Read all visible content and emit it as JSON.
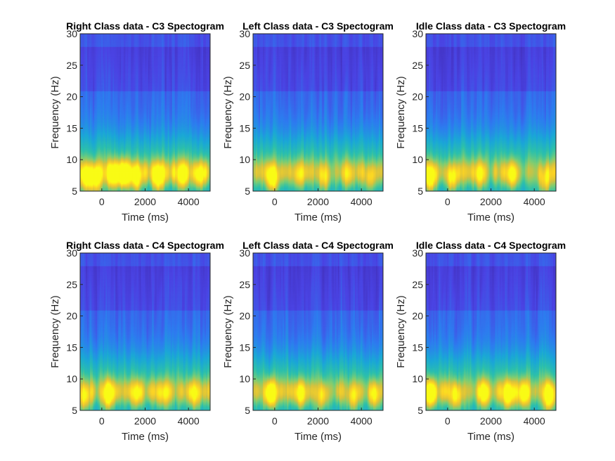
{
  "chart_data": [
    {
      "type": "heatmap",
      "title": "Right Class data - C3 Spectogram",
      "xlabel": "Time (ms)",
      "ylabel": "Frequency (Hz)",
      "xlim": [
        -1000,
        5000
      ],
      "ylim": [
        5,
        30
      ],
      "xticks": [
        "0",
        "2000",
        "4000"
      ],
      "yticks": [
        "5",
        "10",
        "15",
        "20",
        "25",
        "30"
      ],
      "colormap": [
        "#3e26a8",
        "#4a43e3",
        "#2d7bef",
        "#1aa7d6",
        "#2cc0aa",
        "#7ccd73",
        "#d6c23d",
        "#fbd225",
        "#f9fb15"
      ],
      "intensity": 0.95,
      "hot_spots": [
        {
          "t": -700,
          "f": 7,
          "v": 0.85
        },
        {
          "t": -300,
          "f": 6.5,
          "v": 0.75
        },
        {
          "t": 500,
          "f": 7.5,
          "v": 0.8
        },
        {
          "t": 1000,
          "f": 7.5,
          "v": 0.95
        },
        {
          "t": 1600,
          "f": 7,
          "v": 0.85
        },
        {
          "t": 2600,
          "f": 7,
          "v": 0.9
        },
        {
          "t": 3700,
          "f": 7.5,
          "v": 0.85
        },
        {
          "t": 4500,
          "f": 7.5,
          "v": 0.85
        }
      ]
    },
    {
      "type": "heatmap",
      "title": "Left Class data - C3 Spectogram",
      "xlabel": "Time (ms)",
      "ylabel": "Frequency (Hz)",
      "xlim": [
        -1000,
        5000
      ],
      "ylim": [
        5,
        30
      ],
      "xticks": [
        "0",
        "2000",
        "4000"
      ],
      "yticks": [
        "5",
        "10",
        "15",
        "20",
        "25",
        "30"
      ],
      "colormap": [
        "#3e26a8",
        "#4a43e3",
        "#2d7bef",
        "#1aa7d6",
        "#2cc0aa",
        "#7ccd73",
        "#d6c23d",
        "#fbd225",
        "#f9fb15"
      ],
      "intensity": 0.7,
      "hot_spots": [
        {
          "t": -100,
          "f": 7,
          "v": 1.0
        },
        {
          "t": 1100,
          "f": 7.5,
          "v": 0.55
        },
        {
          "t": 2300,
          "f": 7,
          "v": 0.55
        },
        {
          "t": 3400,
          "f": 7.5,
          "v": 0.5
        },
        {
          "t": 4400,
          "f": 7,
          "v": 0.55
        }
      ]
    },
    {
      "type": "heatmap",
      "title": "Idle Class data - C3 Spectogram",
      "xlabel": "Time (ms)",
      "ylabel": "Frequency (Hz)",
      "xlim": [
        -1000,
        5000
      ],
      "ylim": [
        5,
        30
      ],
      "xticks": [
        "0",
        "2000",
        "4000"
      ],
      "yticks": [
        "5",
        "10",
        "15",
        "20",
        "25",
        "30"
      ],
      "colormap": [
        "#3e26a8",
        "#4a43e3",
        "#2d7bef",
        "#1aa7d6",
        "#2cc0aa",
        "#7ccd73",
        "#d6c23d",
        "#fbd225",
        "#f9fb15"
      ],
      "intensity": 0.75,
      "hot_spots": [
        {
          "t": -800,
          "f": 7,
          "v": 1.0
        },
        {
          "t": 200,
          "f": 7,
          "v": 0.8
        },
        {
          "t": 1500,
          "f": 7.5,
          "v": 0.55
        },
        {
          "t": 3000,
          "f": 7.5,
          "v": 0.75
        },
        {
          "t": 4500,
          "f": 6.5,
          "v": 0.65
        }
      ]
    },
    {
      "type": "heatmap",
      "title": "Right Class data - C4 Spectogram",
      "xlabel": "Time (ms)",
      "ylabel": "Frequency (Hz)",
      "xlim": [
        -1000,
        5000
      ],
      "ylim": [
        5,
        30
      ],
      "xticks": [
        "0",
        "2000",
        "4000"
      ],
      "yticks": [
        "5",
        "10",
        "15",
        "20",
        "25",
        "30"
      ],
      "colormap": [
        "#3e26a8",
        "#4a43e3",
        "#2d7bef",
        "#1aa7d6",
        "#2cc0aa",
        "#7ccd73",
        "#d6c23d",
        "#fbd225",
        "#f9fb15"
      ],
      "intensity": 0.75,
      "hot_spots": [
        {
          "t": -800,
          "f": 7,
          "v": 0.7
        },
        {
          "t": 300,
          "f": 7.5,
          "v": 1.0
        },
        {
          "t": 1600,
          "f": 7.5,
          "v": 0.6
        },
        {
          "t": 2800,
          "f": 7.5,
          "v": 0.55
        },
        {
          "t": 4300,
          "f": 7.5,
          "v": 0.6
        }
      ]
    },
    {
      "type": "heatmap",
      "title": "Left Class data - C4 Spectogram",
      "xlabel": "Time (ms)",
      "ylabel": "Frequency (Hz)",
      "xlim": [
        -1000,
        5000
      ],
      "ylim": [
        5,
        30
      ],
      "xticks": [
        "0",
        "2000",
        "4000"
      ],
      "yticks": [
        "5",
        "10",
        "15",
        "20",
        "25",
        "30"
      ],
      "colormap": [
        "#3e26a8",
        "#4a43e3",
        "#2d7bef",
        "#1aa7d6",
        "#2cc0aa",
        "#7ccd73",
        "#d6c23d",
        "#fbd225",
        "#f9fb15"
      ],
      "intensity": 0.75,
      "hot_spots": [
        {
          "t": -200,
          "f": 7.5,
          "v": 0.95
        },
        {
          "t": 1200,
          "f": 7.5,
          "v": 0.75
        },
        {
          "t": 2200,
          "f": 7,
          "v": 0.55
        },
        {
          "t": 3600,
          "f": 7,
          "v": 0.6
        },
        {
          "t": 4600,
          "f": 7,
          "v": 0.55
        }
      ]
    },
    {
      "type": "heatmap",
      "title": "Idle Class data - C4 Spectogram",
      "xlabel": "Time (ms)",
      "ylabel": "Frequency (Hz)",
      "xlim": [
        -1000,
        5000
      ],
      "ylim": [
        5,
        30
      ],
      "xticks": [
        "0",
        "2000",
        "4000"
      ],
      "yticks": [
        "5",
        "10",
        "15",
        "20",
        "25",
        "30"
      ],
      "colormap": [
        "#3e26a8",
        "#4a43e3",
        "#2d7bef",
        "#1aa7d6",
        "#2cc0aa",
        "#7ccd73",
        "#d6c23d",
        "#fbd225",
        "#f9fb15"
      ],
      "intensity": 0.9,
      "hot_spots": [
        {
          "t": -800,
          "f": 7.5,
          "v": 0.9
        },
        {
          "t": 400,
          "f": 7,
          "v": 0.7
        },
        {
          "t": 1700,
          "f": 7.5,
          "v": 0.6
        },
        {
          "t": 2800,
          "f": 7.5,
          "v": 1.0
        },
        {
          "t": 3500,
          "f": 7.5,
          "v": 0.75
        },
        {
          "t": 4700,
          "f": 7,
          "v": 0.9
        }
      ]
    }
  ]
}
